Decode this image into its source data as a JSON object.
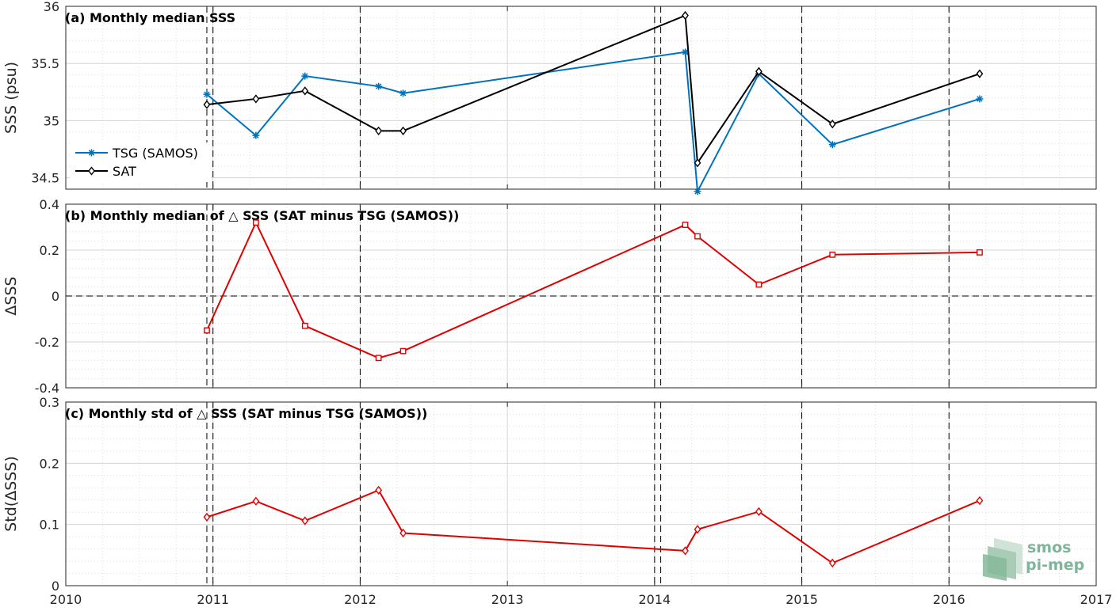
{
  "logo": {
    "line1": "smos",
    "line2": "pi-mep"
  },
  "x_tick_labels": [
    "2010",
    "2011",
    "2012",
    "2013",
    "2014",
    "2015",
    "2016",
    "2017"
  ],
  "chart_data": [
    {
      "type": "line",
      "title": "(a) Monthly median SSS",
      "ylabel": "SSS (psu)",
      "xlim": [
        2010,
        2017
      ],
      "ylim": [
        34.4,
        36
      ],
      "yticks": [
        34.5,
        35,
        35.5,
        36
      ],
      "ytick_labels": [
        "34.5",
        "35",
        "35.5",
        "36"
      ],
      "grid": true,
      "legend": "lower-left",
      "series": [
        {
          "name": "TSG (SAMOS)",
          "color": "#0072bd",
          "marker": "asterisk",
          "x": [
            "2010-12",
            "2011-04",
            "2011-08",
            "2012-02",
            "2012-04",
            "2014-03",
            "2014-04",
            "2014-09",
            "2015-03",
            "2016-03"
          ],
          "y": [
            35.23,
            34.87,
            35.39,
            35.3,
            35.24,
            35.6,
            34.38,
            35.41,
            34.79,
            35.19
          ]
        },
        {
          "name": "SAT",
          "color": "#000000",
          "marker": "diamond",
          "x": [
            "2010-12",
            "2011-04",
            "2011-08",
            "2012-02",
            "2012-04",
            "2014-03",
            "2014-04",
            "2014-09",
            "2015-03",
            "2016-03"
          ],
          "y": [
            35.14,
            35.19,
            35.26,
            34.91,
            34.91,
            35.92,
            34.63,
            35.43,
            34.97,
            35.41
          ]
        }
      ]
    },
    {
      "type": "line",
      "title": "(b) Monthly median of △ SSS (SAT minus TSG (SAMOS))",
      "ylabel": "ΔSSS",
      "xlim": [
        2010,
        2017
      ],
      "ylim": [
        -0.4,
        0.4
      ],
      "yticks": [
        -0.4,
        -0.2,
        0,
        0.2,
        0.4
      ],
      "ytick_labels": [
        "-0.4",
        "-0.2",
        "0",
        "0.2",
        "0.4"
      ],
      "grid": true,
      "series": [
        {
          "color": "#e00000",
          "marker": "square",
          "x": [
            "2010-12",
            "2011-04",
            "2011-08",
            "2012-02",
            "2012-04",
            "2014-03",
            "2014-04",
            "2014-09",
            "2015-03",
            "2016-03"
          ],
          "y": [
            -0.15,
            0.32,
            -0.13,
            -0.27,
            -0.24,
            0.31,
            0.26,
            0.05,
            0.18,
            0.19
          ]
        }
      ]
    },
    {
      "type": "line",
      "title": "(c) Monthly std of △ SSS (SAT minus TSG (SAMOS))",
      "ylabel": "Std(ΔSSS)",
      "xlim": [
        2010,
        2017
      ],
      "ylim": [
        0,
        0.3
      ],
      "yticks": [
        0,
        0.1,
        0.2,
        0.3
      ],
      "ytick_labels": [
        "0",
        "0.1",
        "0.2",
        "0.3"
      ],
      "grid": true,
      "series": [
        {
          "color": "#e00000",
          "marker": "diamond",
          "x": [
            "2010-12",
            "2011-04",
            "2011-08",
            "2012-02",
            "2012-04",
            "2014-03",
            "2014-04",
            "2014-09",
            "2015-03",
            "2016-03"
          ],
          "y": [
            0.112,
            0.138,
            0.106,
            0.156,
            0.086,
            0.057,
            0.092,
            0.121,
            0.037,
            0.139
          ]
        }
      ]
    }
  ]
}
